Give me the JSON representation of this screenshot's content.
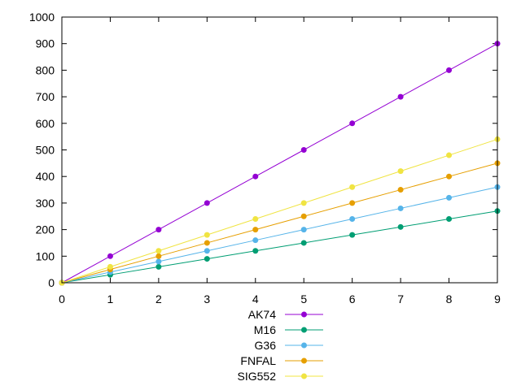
{
  "chart_data": {
    "type": "line",
    "title": "",
    "xlabel": "",
    "ylabel": "",
    "x": [
      0,
      1,
      2,
      3,
      4,
      5,
      6,
      7,
      8,
      9
    ],
    "xlim": [
      0,
      9
    ],
    "ylim": [
      0,
      1000
    ],
    "x_ticks": [
      "0",
      "1",
      "2",
      "3",
      "4",
      "5",
      "6",
      "7",
      "8",
      "9"
    ],
    "y_ticks": [
      "0",
      "100",
      "200",
      "300",
      "400",
      "500",
      "600",
      "700",
      "800",
      "900",
      "1000"
    ],
    "grid": false,
    "legend_position": "bottom-center",
    "series": [
      {
        "name": "AK74",
        "color": "#9400d3",
        "values": [
          0,
          100,
          200,
          300,
          400,
          500,
          600,
          700,
          800,
          900
        ]
      },
      {
        "name": "M16",
        "color": "#009e73",
        "values": [
          0,
          30,
          60,
          90,
          120,
          150,
          180,
          210,
          240,
          270
        ]
      },
      {
        "name": "G36",
        "color": "#56b4e9",
        "values": [
          0,
          40,
          80,
          120,
          160,
          200,
          240,
          280,
          320,
          360
        ]
      },
      {
        "name": "FNFAL",
        "color": "#e69f00",
        "values": [
          0,
          50,
          100,
          150,
          200,
          250,
          300,
          350,
          400,
          450
        ]
      },
      {
        "name": "SIG552",
        "color": "#f0e442",
        "values": [
          0,
          60,
          120,
          180,
          240,
          300,
          360,
          420,
          480,
          540
        ]
      }
    ]
  }
}
